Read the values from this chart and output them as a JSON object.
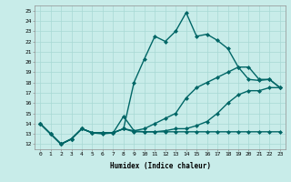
{
  "xlabel": "Humidex (Indice chaleur)",
  "xlim": [
    -0.5,
    23.5
  ],
  "ylim": [
    11.5,
    25.5
  ],
  "yticks": [
    12,
    13,
    14,
    15,
    16,
    17,
    18,
    19,
    20,
    21,
    22,
    23,
    24,
    25
  ],
  "xticks": [
    0,
    1,
    2,
    3,
    4,
    5,
    6,
    7,
    8,
    9,
    10,
    11,
    12,
    13,
    14,
    15,
    16,
    17,
    18,
    19,
    20,
    21,
    22,
    23
  ],
  "bg_color": "#c8ece9",
  "grid_color": "#a8d8d4",
  "line_color": "#006666",
  "line_width": 1.0,
  "marker": "D",
  "marker_size": 2.0,
  "series": [
    [
      14,
      13,
      12,
      12.5,
      13.5,
      13.1,
      13.0,
      13.1,
      13.5,
      13.2,
      13.2,
      13.2,
      13.2,
      13.2,
      13.2,
      13.2,
      13.2,
      13.2,
      13.2,
      13.2,
      13.2,
      13.2,
      13.2,
      13.2
    ],
    [
      14,
      13,
      12,
      12.5,
      13.5,
      13.1,
      13.1,
      13.1,
      13.5,
      18.0,
      20.3,
      22.5,
      22.0,
      23.0,
      24.8,
      22.5,
      22.7,
      22.1,
      21.3,
      19.5,
      18.3,
      18.2,
      18.3,
      17.5
    ],
    [
      14,
      13,
      12,
      12.5,
      13.5,
      13.1,
      13.1,
      13.1,
      14.7,
      13.3,
      13.2,
      13.2,
      13.3,
      13.5,
      13.5,
      13.8,
      14.2,
      15.0,
      16.0,
      16.8,
      17.2,
      17.2,
      17.5,
      17.5
    ],
    [
      14,
      13,
      12,
      12.5,
      13.5,
      13.1,
      13.1,
      13.1,
      13.5,
      13.3,
      13.5,
      14.0,
      14.5,
      15.0,
      16.5,
      17.5,
      18.0,
      18.5,
      19.0,
      19.5,
      19.5,
      18.3,
      18.3,
      17.5
    ]
  ]
}
